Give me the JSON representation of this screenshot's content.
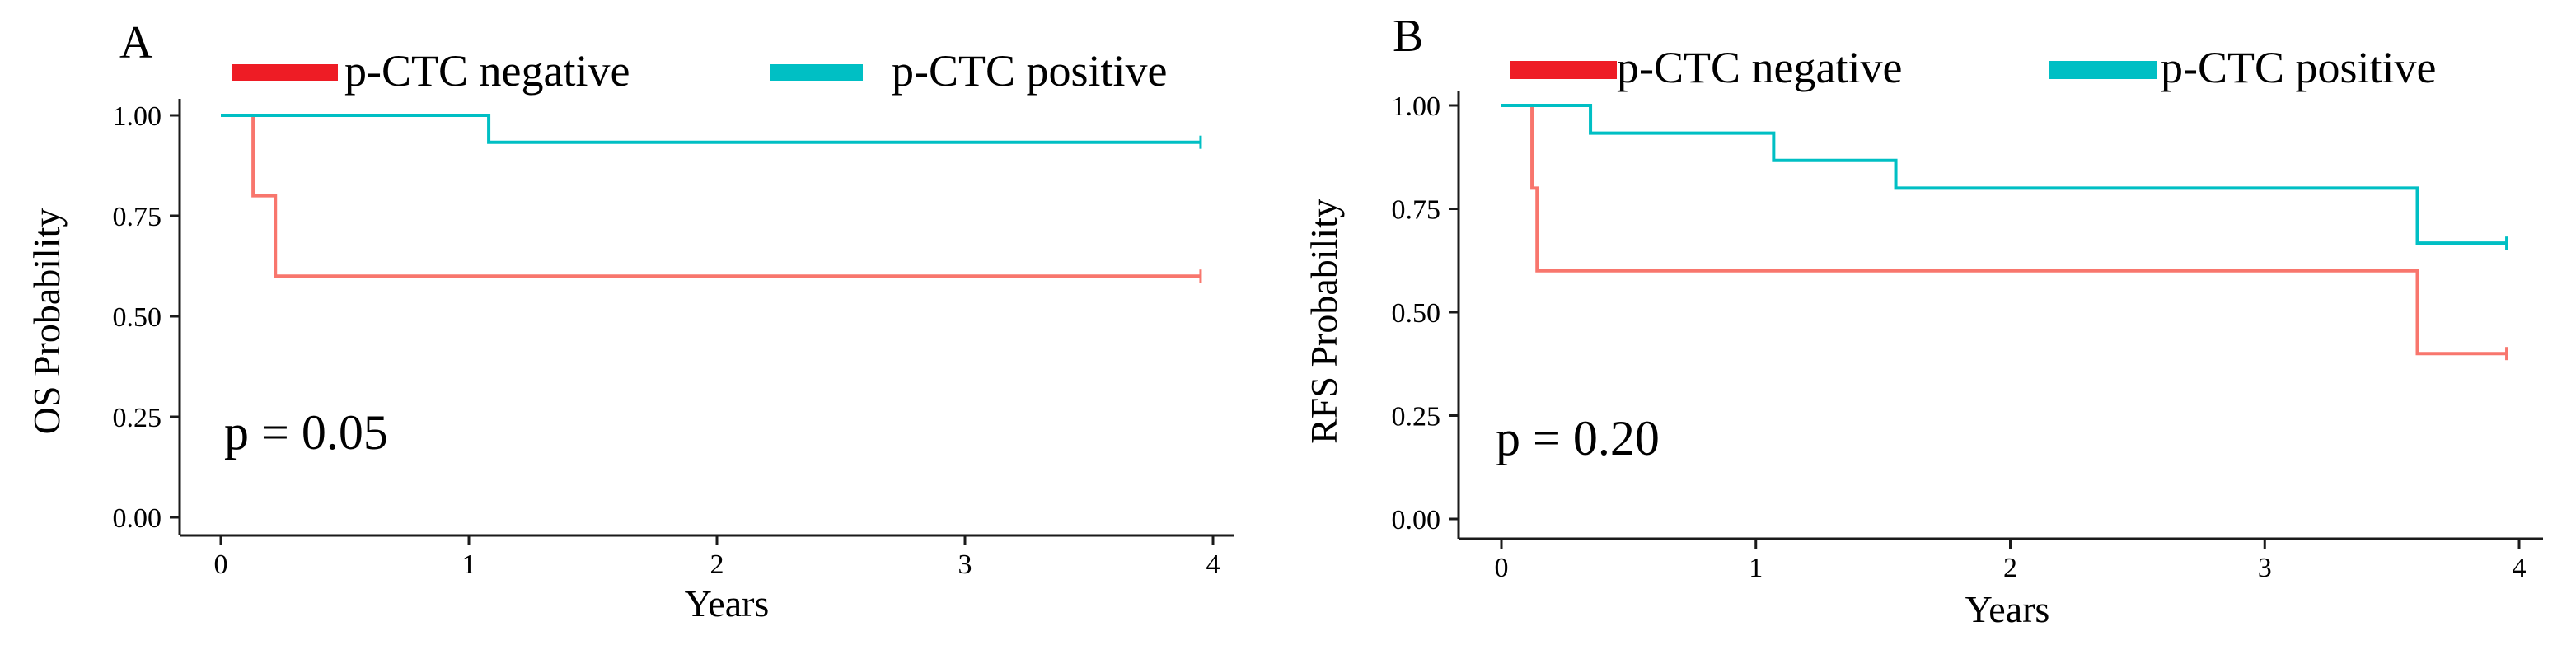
{
  "chart_data": [
    {
      "type": "line",
      "panel": "A",
      "legend": {
        "entries": [
          {
            "label": "p-CTC negative",
            "color": "#f8766d",
            "swatch_color": "#ee1c25"
          },
          {
            "label": "p-CTC positive",
            "color": "#00bfc4",
            "swatch_color": "#00bfc4"
          }
        ]
      },
      "xlabel": "Years",
      "ylabel": "OS Probability",
      "xlim": [
        0,
        4
      ],
      "ylim": [
        0,
        1
      ],
      "xticks": [
        0,
        1,
        2,
        3,
        4
      ],
      "xtick_labels": [
        "0",
        "1",
        "2",
        "3",
        "4"
      ],
      "yticks": [
        0,
        0.25,
        0.5,
        0.75,
        1
      ],
      "ytick_labels": [
        "0.00",
        "0.25",
        "0.50",
        "0.75",
        "1.00"
      ],
      "annotation": "p = 0.05",
      "series": [
        {
          "name": "p-CTC negative",
          "color": "#f8766d",
          "steps": [
            [
              0,
              1.0
            ],
            [
              0.13,
              0.8
            ],
            [
              0.22,
              0.6
            ],
            [
              3.95,
              0.6
            ]
          ],
          "censor": [
            [
              3.95,
              0.6
            ]
          ]
        },
        {
          "name": "p-CTC positive",
          "color": "#00bfc4",
          "steps": [
            [
              0,
              1.0
            ],
            [
              1.08,
              0.933
            ],
            [
              3.95,
              0.933
            ]
          ],
          "censor": [
            [
              3.95,
              0.933
            ]
          ]
        }
      ]
    },
    {
      "type": "line",
      "panel": "B",
      "legend": {
        "entries": [
          {
            "label": "p-CTC negative",
            "color": "#f8766d",
            "swatch_color": "#ee1c25"
          },
          {
            "label": "p-CTC positive",
            "color": "#00bfc4",
            "swatch_color": "#00bfc4"
          }
        ]
      },
      "xlabel": "Years",
      "ylabel": "RFS Probability",
      "xlim": [
        0,
        4
      ],
      "ylim": [
        0,
        1
      ],
      "xticks": [
        0,
        1,
        2,
        3,
        4
      ],
      "xtick_labels": [
        "0",
        "1",
        "2",
        "3",
        "4"
      ],
      "yticks": [
        0,
        0.25,
        0.5,
        0.75,
        1
      ],
      "ytick_labels": [
        "0.00",
        "0.25",
        "0.50",
        "0.75",
        "1.00"
      ],
      "annotation": "p = 0.20",
      "series": [
        {
          "name": "p-CTC negative",
          "color": "#f8766d",
          "steps": [
            [
              0,
              1.0
            ],
            [
              0.12,
              0.8
            ],
            [
              0.14,
              0.6
            ],
            [
              3.6,
              0.4
            ],
            [
              3.95,
              0.4
            ]
          ],
          "censor": [
            [
              3.95,
              0.4
            ]
          ]
        },
        {
          "name": "p-CTC positive",
          "color": "#00bfc4",
          "steps": [
            [
              0,
              1.0
            ],
            [
              0.35,
              0.933
            ],
            [
              1.07,
              0.867
            ],
            [
              1.55,
              0.8
            ],
            [
              3.6,
              0.667
            ],
            [
              3.95,
              0.667
            ]
          ],
          "censor": [
            [
              3.95,
              0.667
            ]
          ]
        }
      ]
    }
  ]
}
